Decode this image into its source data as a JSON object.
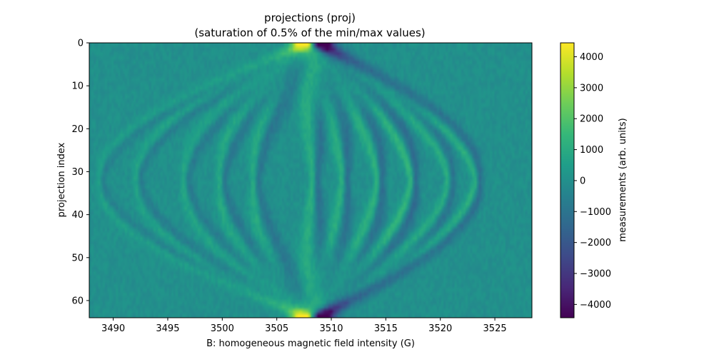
{
  "chart_data": {
    "type": "heatmap",
    "title": "projections (proj)",
    "subtitle": "(saturation of 0.5% of the min/max values)",
    "xlabel": "B: homogeneous magnetic field intensity (G)",
    "ylabel": "projection index",
    "xlim": [
      3487.8,
      3528.4
    ],
    "ylim": [
      64,
      0
    ],
    "x_ticks": [
      3490,
      3495,
      3500,
      3505,
      3510,
      3515,
      3520,
      3525
    ],
    "y_ticks": [
      0,
      10,
      20,
      30,
      40,
      50,
      60
    ],
    "n_projections": 64,
    "colormap": "viridis",
    "colorbar": {
      "label": "measurements (arb. units)",
      "range": [
        -4430,
        4450
      ],
      "ticks": [
        -4000,
        -3000,
        -2000,
        -1000,
        0,
        1000,
        2000,
        3000,
        4000
      ],
      "tick_labels": [
        "−4000",
        "−3000",
        "−2000",
        "−1000",
        "0",
        "1000",
        "2000",
        "3000",
        "4000"
      ]
    },
    "grid": false
  }
}
